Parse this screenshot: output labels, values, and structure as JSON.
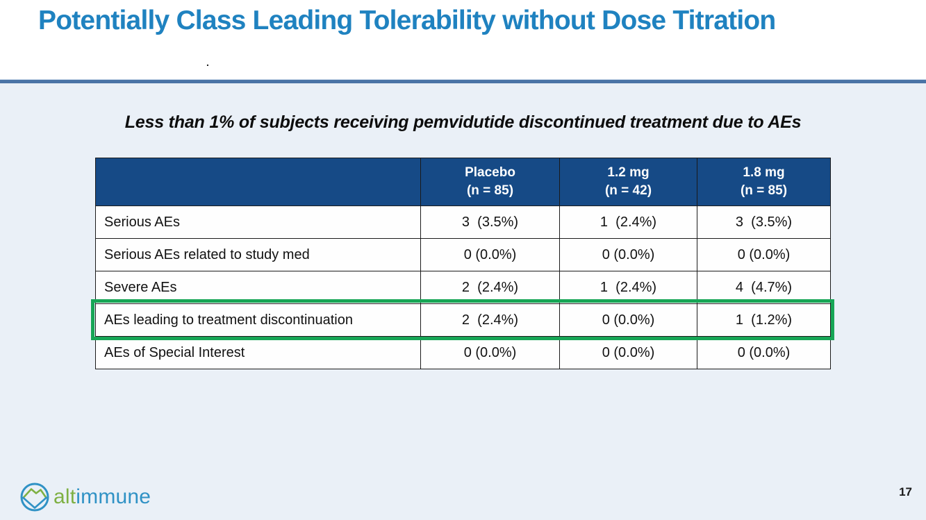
{
  "slide": {
    "title": "Potentially Class Leading Tolerability without Dose Titration",
    "title_trailing_period": ".",
    "subtitle": "Less than 1% of subjects receiving pemvidutide discontinued treatment due to AEs",
    "page_number": "17"
  },
  "table": {
    "headers": [
      {
        "label": "Placebo",
        "n": "(n = 85)"
      },
      {
        "label": "1.2 mg",
        "n": "(n = 42)"
      },
      {
        "label": "1.8 mg",
        "n": "(n = 85)"
      }
    ],
    "rows": [
      {
        "label": "Serious AEs",
        "values": [
          "3  (3.5%)",
          "1  (2.4%)",
          "3  (3.5%)"
        ],
        "highlighted": false
      },
      {
        "label": "Serious AEs related to study med",
        "values": [
          "0 (0.0%)",
          "0 (0.0%)",
          "0 (0.0%)"
        ],
        "highlighted": false
      },
      {
        "label": "Severe AEs",
        "values": [
          "2  (2.4%)",
          "1  (2.4%)",
          "4  (4.7%)"
        ],
        "highlighted": false
      },
      {
        "label": "AEs leading to treatment discontinuation",
        "values": [
          "2  (2.4%)",
          "0 (0.0%)",
          "1  (1.2%)"
        ],
        "highlighted": true
      },
      {
        "label": "AEs of Special Interest",
        "values": [
          "0 (0.0%)",
          "0 (0.0%)",
          "0 (0.0%)"
        ],
        "highlighted": false
      }
    ]
  },
  "logo": {
    "text_alt": "alt",
    "text_immune": "immune"
  },
  "colors": {
    "title_blue": "#1F82C0",
    "divider_blue": "#4A74A6",
    "slide_bg_lower": "#EAF0F7",
    "table_header_bg": "#164A86",
    "table_header_text": "#FFFFFF",
    "border_black": "#1A1A1A",
    "highlight_green": "#17A656",
    "logo_green": "#7EB043",
    "logo_blue": "#3092C5",
    "subtitle_text": "#0D0D0D"
  }
}
